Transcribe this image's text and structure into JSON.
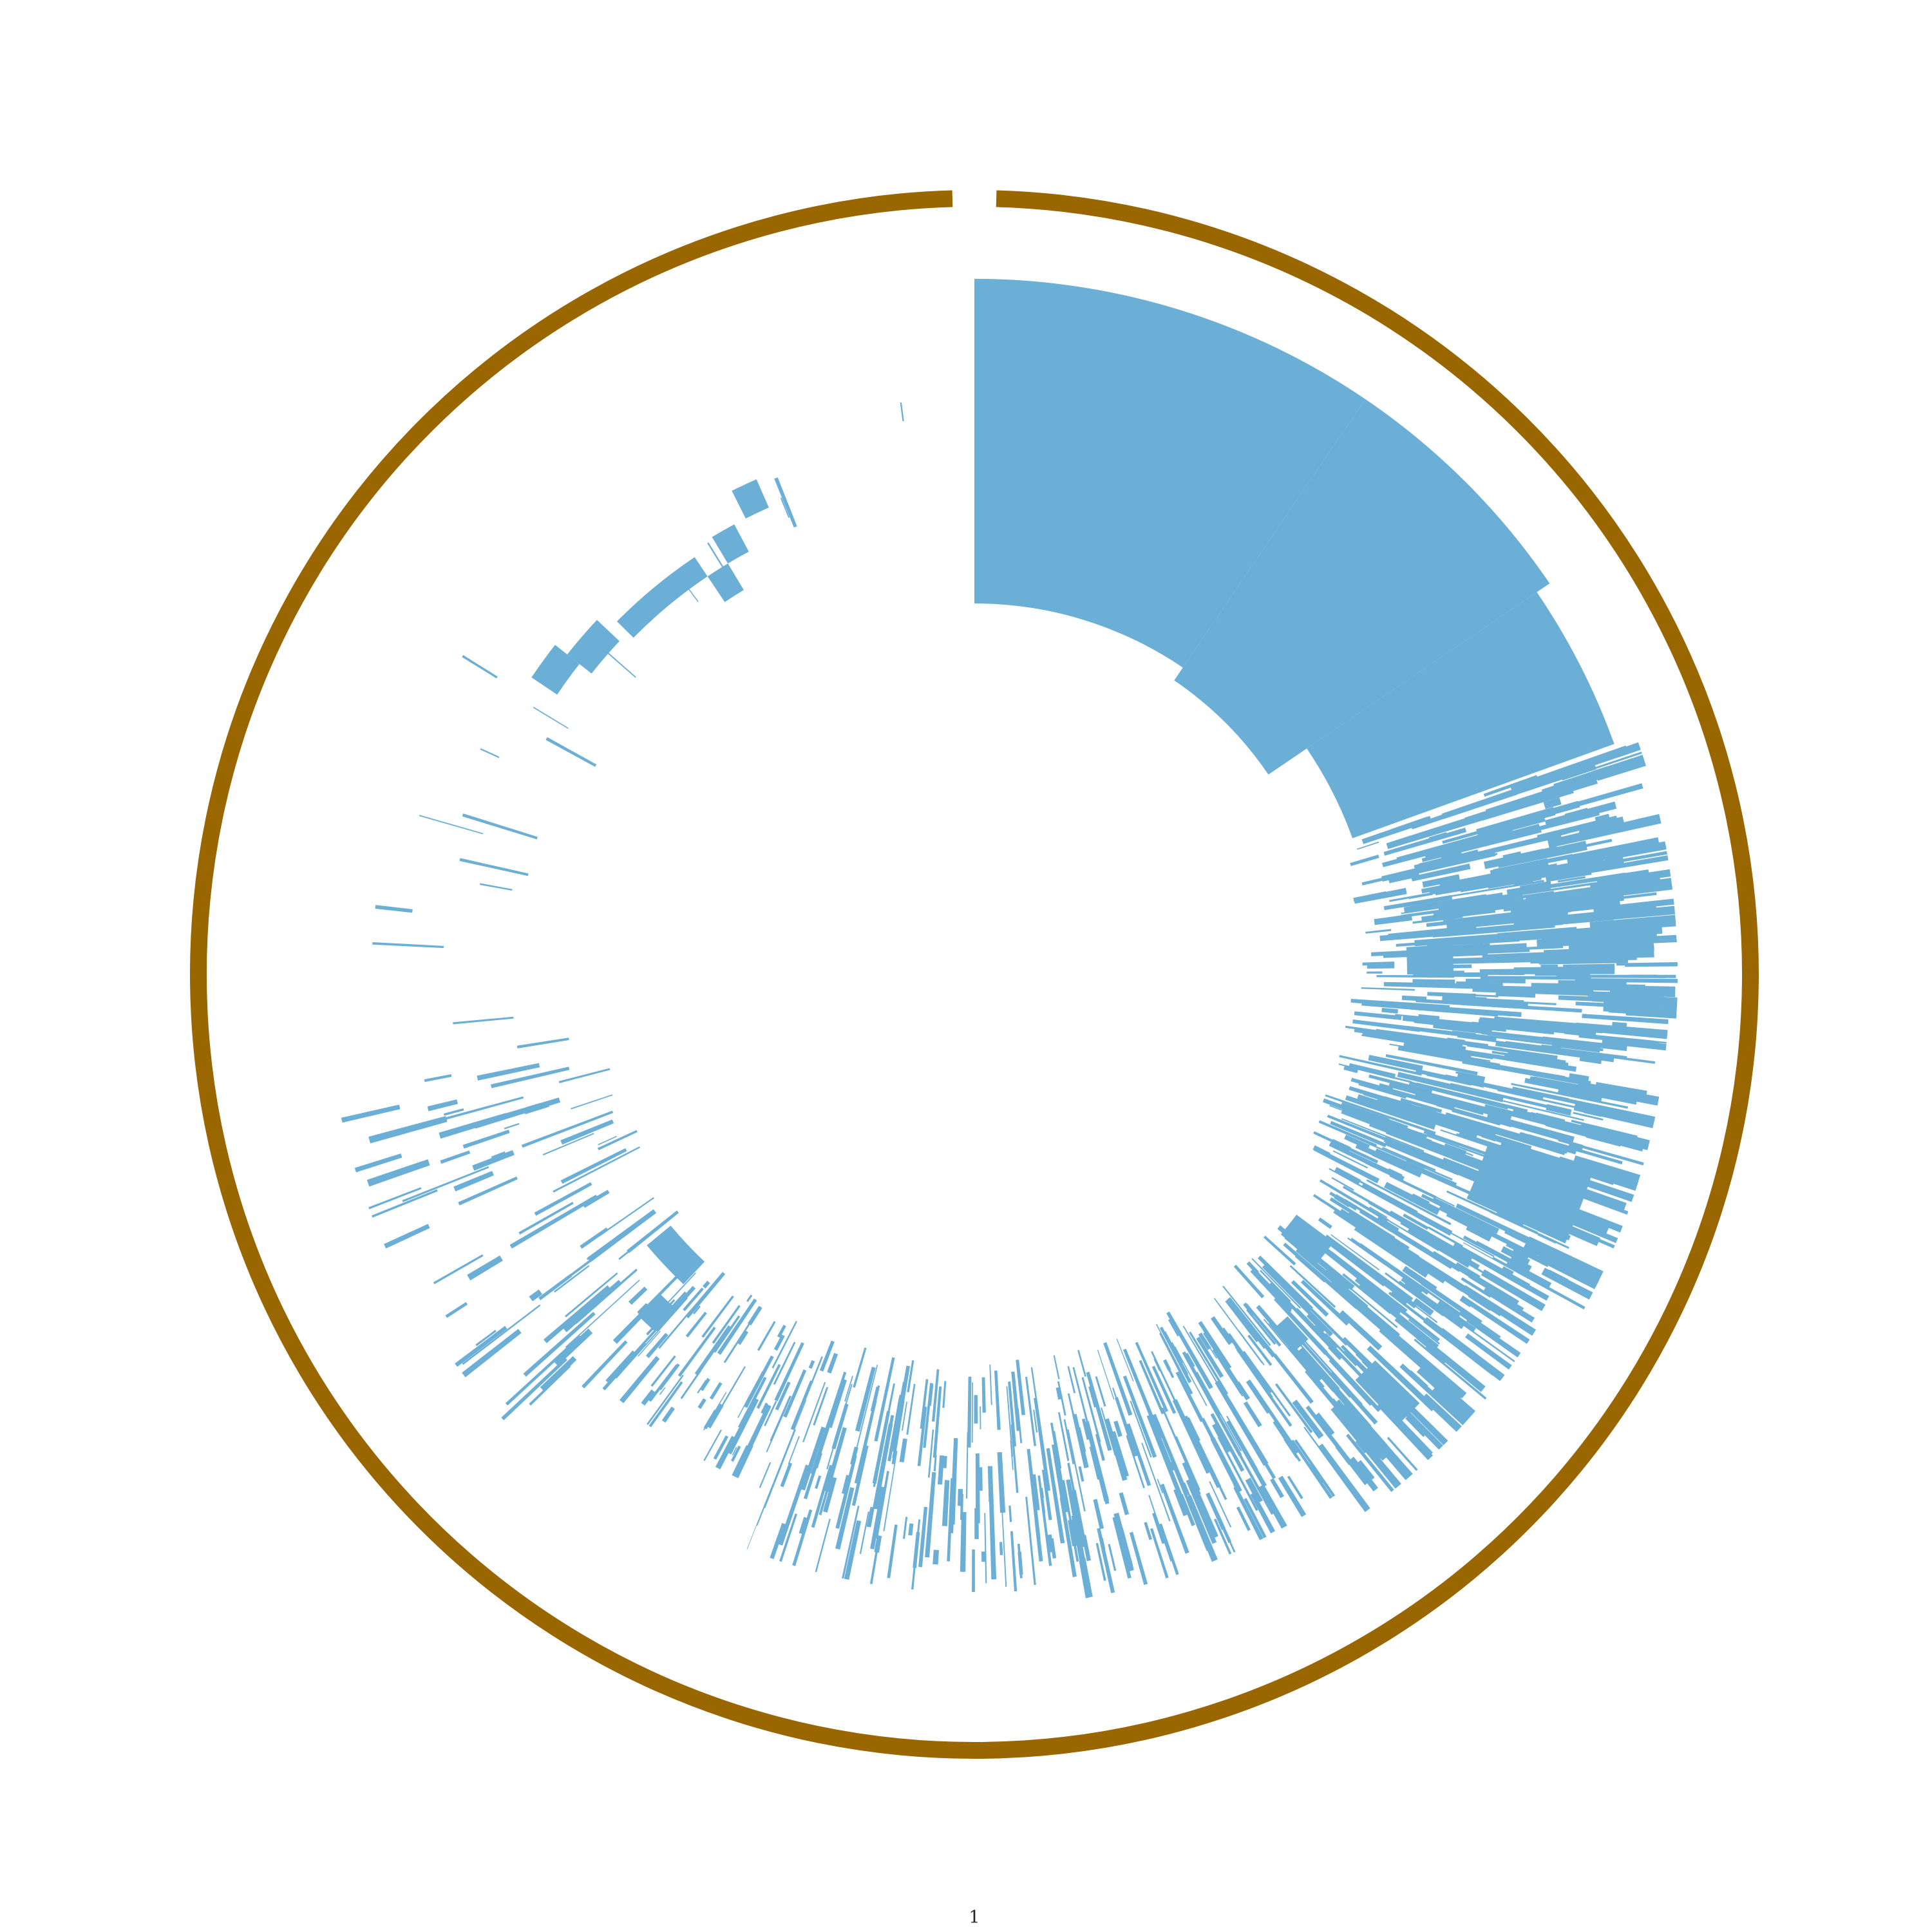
{
  "chart_data": {
    "type": "circular-track",
    "title": "",
    "track_label": "1",
    "axis_range_fraction": [
      0,
      1
    ],
    "grid": false,
    "legend": "none",
    "colors": {
      "ring": "#996600",
      "coverage": "#6baed6",
      "background": "#ffffff"
    },
    "solid_blocks": [
      {
        "start": 0.0,
        "end": 0.095,
        "inner": 0.48,
        "outer": 0.9
      },
      {
        "start": 0.095,
        "end": 0.155,
        "inner": 0.46,
        "outer": 0.9
      },
      {
        "start": 0.155,
        "end": 0.195,
        "inner": 0.52,
        "outer": 0.88
      }
    ],
    "bands": [
      {
        "start": 0.195,
        "end": 0.26,
        "inner": 0.5,
        "outer": 0.91,
        "count": 260,
        "width": 0.0009,
        "seed": 11
      },
      {
        "start": 0.26,
        "end": 0.33,
        "inner": 0.48,
        "outer": 0.9,
        "count": 260,
        "width": 0.0008,
        "seed": 23
      },
      {
        "start": 0.33,
        "end": 0.4,
        "inner": 0.5,
        "outer": 0.86,
        "count": 200,
        "width": 0.0007,
        "seed": 37
      },
      {
        "start": 0.4,
        "end": 0.48,
        "inner": 0.5,
        "outer": 0.82,
        "count": 170,
        "width": 0.0006,
        "seed": 41
      },
      {
        "start": 0.48,
        "end": 0.56,
        "inner": 0.5,
        "outer": 0.8,
        "count": 130,
        "width": 0.0006,
        "seed": 53
      },
      {
        "start": 0.56,
        "end": 0.62,
        "inner": 0.5,
        "outer": 0.72,
        "count": 80,
        "width": 0.0006,
        "seed": 67
      },
      {
        "start": 0.62,
        "end": 0.72,
        "inner": 0.48,
        "outer": 0.84,
        "count": 75,
        "width": 0.0007,
        "seed": 79
      },
      {
        "start": 0.72,
        "end": 0.86,
        "inner": 0.52,
        "outer": 0.78,
        "count": 12,
        "width": 0.0005,
        "seed": 89
      },
      {
        "start": 0.86,
        "end": 1.0,
        "inner": 0.55,
        "outer": 0.8,
        "count": 6,
        "width": 0.0005,
        "seed": 97
      }
    ],
    "solid_features": [
      {
        "start": 0.238,
        "end": 0.246,
        "inner": 0.77,
        "outer": 0.88
      },
      {
        "start": 0.24,
        "end": 0.25,
        "inner": 0.56,
        "outer": 0.62
      },
      {
        "start": 0.3,
        "end": 0.318,
        "inner": 0.7,
        "outer": 0.84
      },
      {
        "start": 0.352,
        "end": 0.362,
        "inner": 0.52,
        "outer": 0.58
      },
      {
        "start": 0.372,
        "end": 0.38,
        "inner": 0.72,
        "outer": 0.8
      },
      {
        "start": 0.382,
        "end": 0.388,
        "inner": 0.6,
        "outer": 0.64
      },
      {
        "start": 0.62,
        "end": 0.64,
        "inner": 0.51,
        "outer": 0.55
      },
      {
        "start": 0.616,
        "end": 0.624,
        "inner": 0.58,
        "outer": 0.62
      },
      {
        "start": 0.844,
        "end": 0.856,
        "inner": 0.65,
        "outer": 0.69
      },
      {
        "start": 0.856,
        "end": 0.87,
        "inner": 0.63,
        "outer": 0.67
      },
      {
        "start": 0.874,
        "end": 0.906,
        "inner": 0.62,
        "outer": 0.65
      },
      {
        "start": 0.906,
        "end": 0.914,
        "inner": 0.58,
        "outer": 0.62
      },
      {
        "start": 0.914,
        "end": 0.922,
        "inner": 0.62,
        "outer": 0.66
      },
      {
        "start": 0.926,
        "end": 0.934,
        "inner": 0.66,
        "outer": 0.7
      }
    ]
  }
}
